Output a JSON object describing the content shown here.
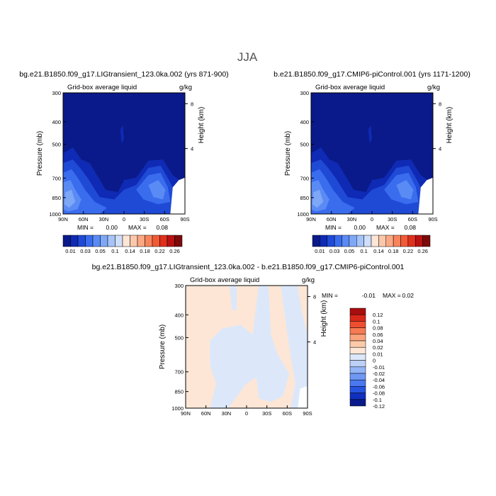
{
  "title": "JJA",
  "colors": {
    "abs_scale": [
      "#0a1a8a",
      "#0f2ab4",
      "#1f4ad6",
      "#3a6cee",
      "#5a8af4",
      "#7ea8f6",
      "#a6c4f8",
      "#cfdefa",
      "#fde6d6",
      "#fcc8ac",
      "#fba884",
      "#f8845c",
      "#f25a36",
      "#e0301e",
      "#b81212",
      "#7d0a0a"
    ],
    "diff_scale": [
      "#0a1a8a",
      "#1030c0",
      "#2654e0",
      "#4a78f0",
      "#6e98f4",
      "#94b4f6",
      "#bcd0f8",
      "#dce8fa",
      "#fde6d6",
      "#fccaa8",
      "#faa47c",
      "#f67a52",
      "#ee4e30",
      "#d8281a",
      "#a80e0e"
    ]
  },
  "chart_data": [
    {
      "type": "contour",
      "title": "bg.e21.B1850.f09_g17.LIGtransient_123.0ka.002 (yrs 871-900)",
      "subtitle_left": "Grid-box average liquid",
      "subtitle_right": "g/kg",
      "ylabel": "Pressure (mb)",
      "ylabel_right": "Height (km)",
      "x_ticks": [
        "90N",
        "60N",
        "30N",
        "0",
        "30S",
        "60S",
        "90S"
      ],
      "y_ticks": [
        "300",
        "400",
        "500",
        "700",
        "850",
        "1000"
      ],
      "y_right_ticks": [
        "8",
        "4"
      ],
      "min_label": "MIN =",
      "min_value": "0.00",
      "max_label": "MAX =",
      "max_value": "0.08",
      "colorbar_labels": [
        "0.01",
        "0.03",
        "0.05",
        "0.1",
        "0.14",
        "0.18",
        "0.22",
        "0.26"
      ]
    },
    {
      "type": "contour",
      "title": "b.e21.B1850.f09_g17.CMIP6-piControl.001 (yrs 1171-1200)",
      "subtitle_left": "Grid-box average liquid",
      "subtitle_right": "g/kg",
      "ylabel": "Pressure (mb)",
      "ylabel_right": "Height (km)",
      "x_ticks": [
        "90N",
        "60N",
        "30N",
        "0",
        "30S",
        "60S",
        "90S"
      ],
      "y_ticks": [
        "300",
        "400",
        "500",
        "700",
        "850",
        "1000"
      ],
      "y_right_ticks": [
        "8",
        "4"
      ],
      "min_label": "MIN =",
      "min_value": "0.00",
      "max_label": "MAX =",
      "max_value": "0.08",
      "colorbar_labels": [
        "0.01",
        "0.03",
        "0.05",
        "0.1",
        "0.14",
        "0.18",
        "0.22",
        "0.26"
      ]
    },
    {
      "type": "contour",
      "title": "bg.e21.B1850.f09_g17.LIGtransient_123.0ka.002 - b.e21.B1850.f09_g17.CMIP6-piControl.001",
      "subtitle_left": "Grid-box average liquid",
      "subtitle_right": "g/kg",
      "ylabel": "Pressure (mb)",
      "ylabel_right": "Height (km)",
      "x_ticks": [
        "90N",
        "60N",
        "30N",
        "0",
        "30S",
        "60S",
        "90S"
      ],
      "y_ticks": [
        "300",
        "400",
        "500",
        "700",
        "850",
        "1000"
      ],
      "y_right_ticks": [
        "8",
        "4"
      ],
      "min_label": "MIN =",
      "min_value": "-0.01",
      "max_label": "MAX =",
      "max_value": "0.02",
      "colorbar_labels": [
        "0.12",
        "0.1",
        "0.08",
        "0.06",
        "0.04",
        "0.02",
        "0.01",
        "0",
        "-0.01",
        "-0.02",
        "-0.04",
        "-0.06",
        "-0.08",
        "-0.1",
        "-0.12"
      ]
    }
  ]
}
